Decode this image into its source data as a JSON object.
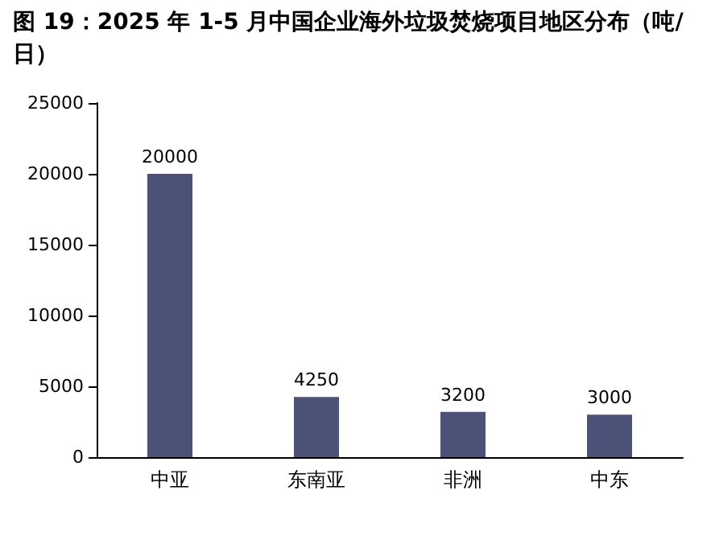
{
  "chart_data": {
    "type": "bar",
    "title": "图 19：2025 年 1-5 月中国企业海外垃圾焚烧项目地区分布（吨/日）",
    "categories": [
      "中亚",
      "东南亚",
      "非洲",
      "中东"
    ],
    "values": [
      20000,
      4250,
      3200,
      3000
    ],
    "color": "#4b5177",
    "ylim": [
      0,
      25000
    ],
    "yticks": [
      0,
      5000,
      10000,
      15000,
      20000,
      25000
    ],
    "grid": false,
    "data_labels": true
  }
}
